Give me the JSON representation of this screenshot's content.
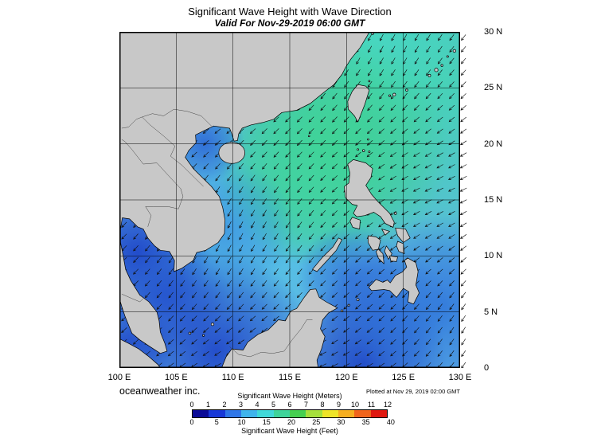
{
  "header": {
    "title": "Significant Wave Height with Wave Direction",
    "subtitle": "Valid For Nov-29-2019 06:00 GMT"
  },
  "axes": {
    "lat_labels": [
      "30 N",
      "25 N",
      "20 N",
      "15 N",
      "10 N",
      "5 N",
      "0"
    ],
    "lon_labels": [
      "100 E",
      "105 E",
      "110 E",
      "115 E",
      "120 E",
      "125 E",
      "130 E"
    ],
    "grid_interval_degrees": 5
  },
  "colorbar": {
    "meters_title": "Significant Wave Height (Meters)",
    "feet_title": "Significant Wave Height (Feet)",
    "meters_ticks": [
      "0",
      "1",
      "2",
      "3",
      "4",
      "5",
      "6",
      "7",
      "8",
      "9",
      "10",
      "11",
      "12"
    ],
    "feet_ticks": [
      "0",
      "5",
      "10",
      "15",
      "20",
      "25",
      "30",
      "35",
      "40"
    ],
    "segment_colors": [
      "#0a0a96",
      "#1838d8",
      "#2f76e8",
      "#3fb4ec",
      "#40d8d8",
      "#3ed49a",
      "#46d050",
      "#a6e03c",
      "#eee428",
      "#f6ae20",
      "#f0641c",
      "#e01810"
    ]
  },
  "footer": {
    "credit": "oceanweather inc.",
    "plotted": "Plotted at Nov 29, 2019 02:00 GMT"
  },
  "map": {
    "land_color": "#c8c8c8",
    "ocean_base_color": "#5fb4e6",
    "high_wave_green": "#3bd389",
    "pacific_teal": "#44d5b0",
    "low_wave_dark_blue": "#1e44c8",
    "arrow_color": "#111111",
    "arrow_meaning": "wave direction (pointing downwave, generally toward the southwest)"
  },
  "chart_data": {
    "type": "heatmap",
    "title": "Significant Wave Height with Wave Direction",
    "valid_time": "Nov-29-2019 06:00 GMT",
    "plotted_time": "Nov 29, 2019 02:00 GMT",
    "region": {
      "lon_range": [
        "100 E",
        "130 E"
      ],
      "lat_range": [
        "0",
        "30 N"
      ]
    },
    "colorbar_meters": [
      0,
      1,
      2,
      3,
      4,
      5,
      6,
      7,
      8,
      9,
      10,
      11,
      12
    ],
    "colorbar_feet": [
      0,
      5,
      10,
      15,
      20,
      25,
      30,
      35,
      40
    ],
    "approx_wave_heights_m": [
      {
        "area": "northeast South China Sea / Luzon Strait",
        "height_m": 3.0
      },
      {
        "area": "Philippine Sea (northeast corner)",
        "height_m": 2.5
      },
      {
        "area": "central South China Sea",
        "height_m": 2.0
      },
      {
        "area": "southern South China Sea",
        "height_m": 1.5
      },
      {
        "area": "Gulf of Thailand and coastal waters",
        "height_m": 0.5
      }
    ]
  }
}
